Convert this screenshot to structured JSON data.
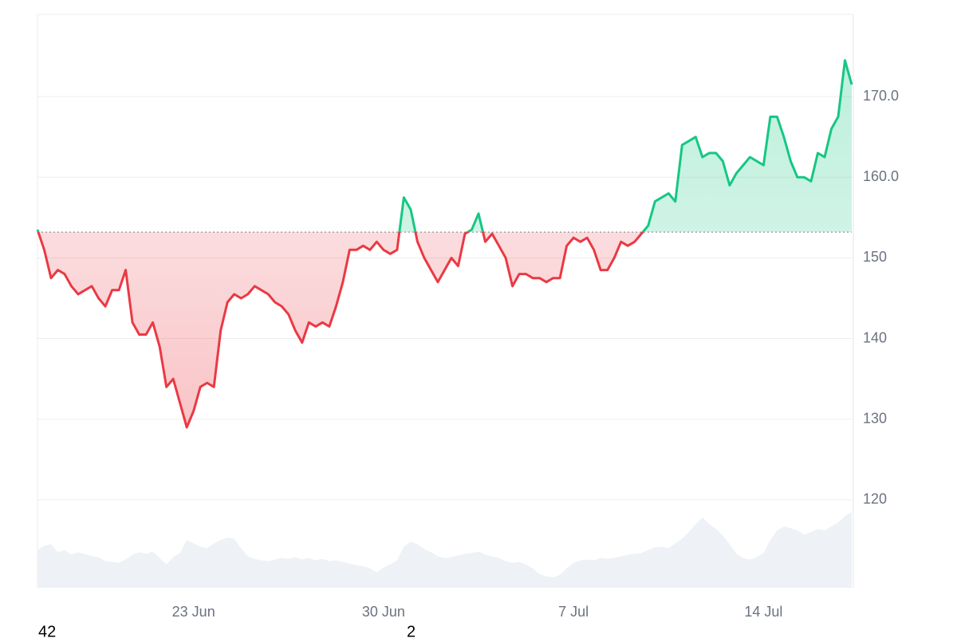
{
  "chart_data": {
    "type": "line",
    "categories": [
      null,
      null,
      null,
      null,
      null,
      null,
      null,
      null,
      null,
      null,
      null,
      null,
      null,
      null,
      null,
      null,
      null,
      null,
      null,
      null,
      null,
      null,
      null,
      "23 Jun",
      null,
      null,
      null,
      null,
      null,
      null,
      null,
      null,
      null,
      null,
      null,
      null,
      null,
      null,
      null,
      null,
      null,
      null,
      null,
      null,
      null,
      null,
      null,
      null,
      null,
      null,
      null,
      "30 Jun",
      null,
      null,
      null,
      null,
      null,
      null,
      null,
      null,
      null,
      null,
      null,
      null,
      null,
      null,
      null,
      null,
      null,
      null,
      null,
      null,
      null,
      null,
      null,
      null,
      null,
      null,
      null,
      "7 Jul",
      null,
      null,
      null,
      null,
      null,
      null,
      null,
      null,
      null,
      null,
      null,
      null,
      null,
      null,
      null,
      null,
      null,
      null,
      null,
      null,
      null,
      null,
      null,
      null,
      null,
      null,
      null,
      "14 Jul",
      null,
      null,
      null,
      null,
      null,
      null,
      null,
      null,
      null,
      null,
      null,
      null,
      null
    ],
    "values": [
      153.5,
      151,
      147.5,
      148.5,
      148,
      146.5,
      145.5,
      146,
      146.5,
      145,
      144,
      146,
      146,
      148.5,
      142,
      140.5,
      140.5,
      142,
      139,
      134,
      135,
      132,
      129,
      131,
      134,
      134.5,
      134,
      141,
      144.5,
      145.5,
      145,
      145.5,
      146.5,
      146,
      145.5,
      144.5,
      144,
      143,
      141,
      139.5,
      142,
      141.5,
      142,
      141.5,
      144,
      147,
      151,
      151,
      151.5,
      151,
      152,
      151,
      150.5,
      151,
      157.5,
      156,
      152,
      150,
      148.5,
      147,
      148.5,
      150,
      149,
      153,
      153.5,
      155.5,
      152,
      153,
      151.5,
      150,
      146.5,
      148,
      148,
      147.5,
      147.5,
      147,
      147.5,
      147.5,
      151.5,
      152.5,
      152,
      152.5,
      151,
      148.5,
      148.5,
      150,
      152,
      151.5,
      152,
      153,
      154,
      157,
      157.5,
      158,
      157,
      164,
      164.5,
      165,
      162.5,
      163,
      163,
      162,
      159,
      160.5,
      161.5,
      162.5,
      162,
      161.5,
      167.5,
      167.5,
      165,
      162,
      160,
      160,
      159.5,
      163,
      162.5,
      166,
      167.5,
      174.5,
      171.5
    ],
    "color_up": "#16c784",
    "color_down": "#ea3943",
    "baseline": 153.2,
    "volume": {
      "color": "#eef1f5",
      "values": [
        113.8,
        114.3,
        114.5,
        113.5,
        113.8,
        113.2,
        113.5,
        113.3,
        113.0,
        112.9,
        112.4,
        112.3,
        112.2,
        112.6,
        113.2,
        113.5,
        113.3,
        113.6,
        112.8,
        112.0,
        112.9,
        113.4,
        115.0,
        114.6,
        114.2,
        114.0,
        114.6,
        115.0,
        115.3,
        115.2,
        114.0,
        113.0,
        112.7,
        112.5,
        112.4,
        112.6,
        112.8,
        112.7,
        112.9,
        112.6,
        112.8,
        112.5,
        112.7,
        112.4,
        112.5,
        112.3,
        112.1,
        111.9,
        111.8,
        111.5,
        111.0,
        111.6,
        112.0,
        112.5,
        114.2,
        114.8,
        114.5,
        113.9,
        113.5,
        113.0,
        112.8,
        112.9,
        113.1,
        113.3,
        113.4,
        113.6,
        113.2,
        113.0,
        112.8,
        112.4,
        112.2,
        112.3,
        112.0,
        111.5,
        110.8,
        110.5,
        110.4,
        110.7,
        111.5,
        112.2,
        112.5,
        112.6,
        112.5,
        112.8,
        112.7,
        112.8,
        113.0,
        113.2,
        113.3,
        113.4,
        113.8,
        114.1,
        114.2,
        114.0,
        114.6,
        115.2,
        116.0,
        117.0,
        117.8,
        117.0,
        116.4,
        115.6,
        114.5,
        113.3,
        112.8,
        112.6,
        112.9,
        113.4,
        115.0,
        116.2,
        116.7,
        116.5,
        116.2,
        115.7,
        116.0,
        116.4,
        116.2,
        116.7,
        117.2,
        118.0,
        118.5
      ]
    },
    "ylim": [
      109.1,
      180.2
    ],
    "yticks": [
      120,
      130,
      140,
      150,
      {
        "value": 160,
        "label": "160.0"
      },
      {
        "value": 170,
        "label": "170.0"
      }
    ],
    "grid": true,
    "annotations": [
      "42",
      "2"
    ]
  }
}
